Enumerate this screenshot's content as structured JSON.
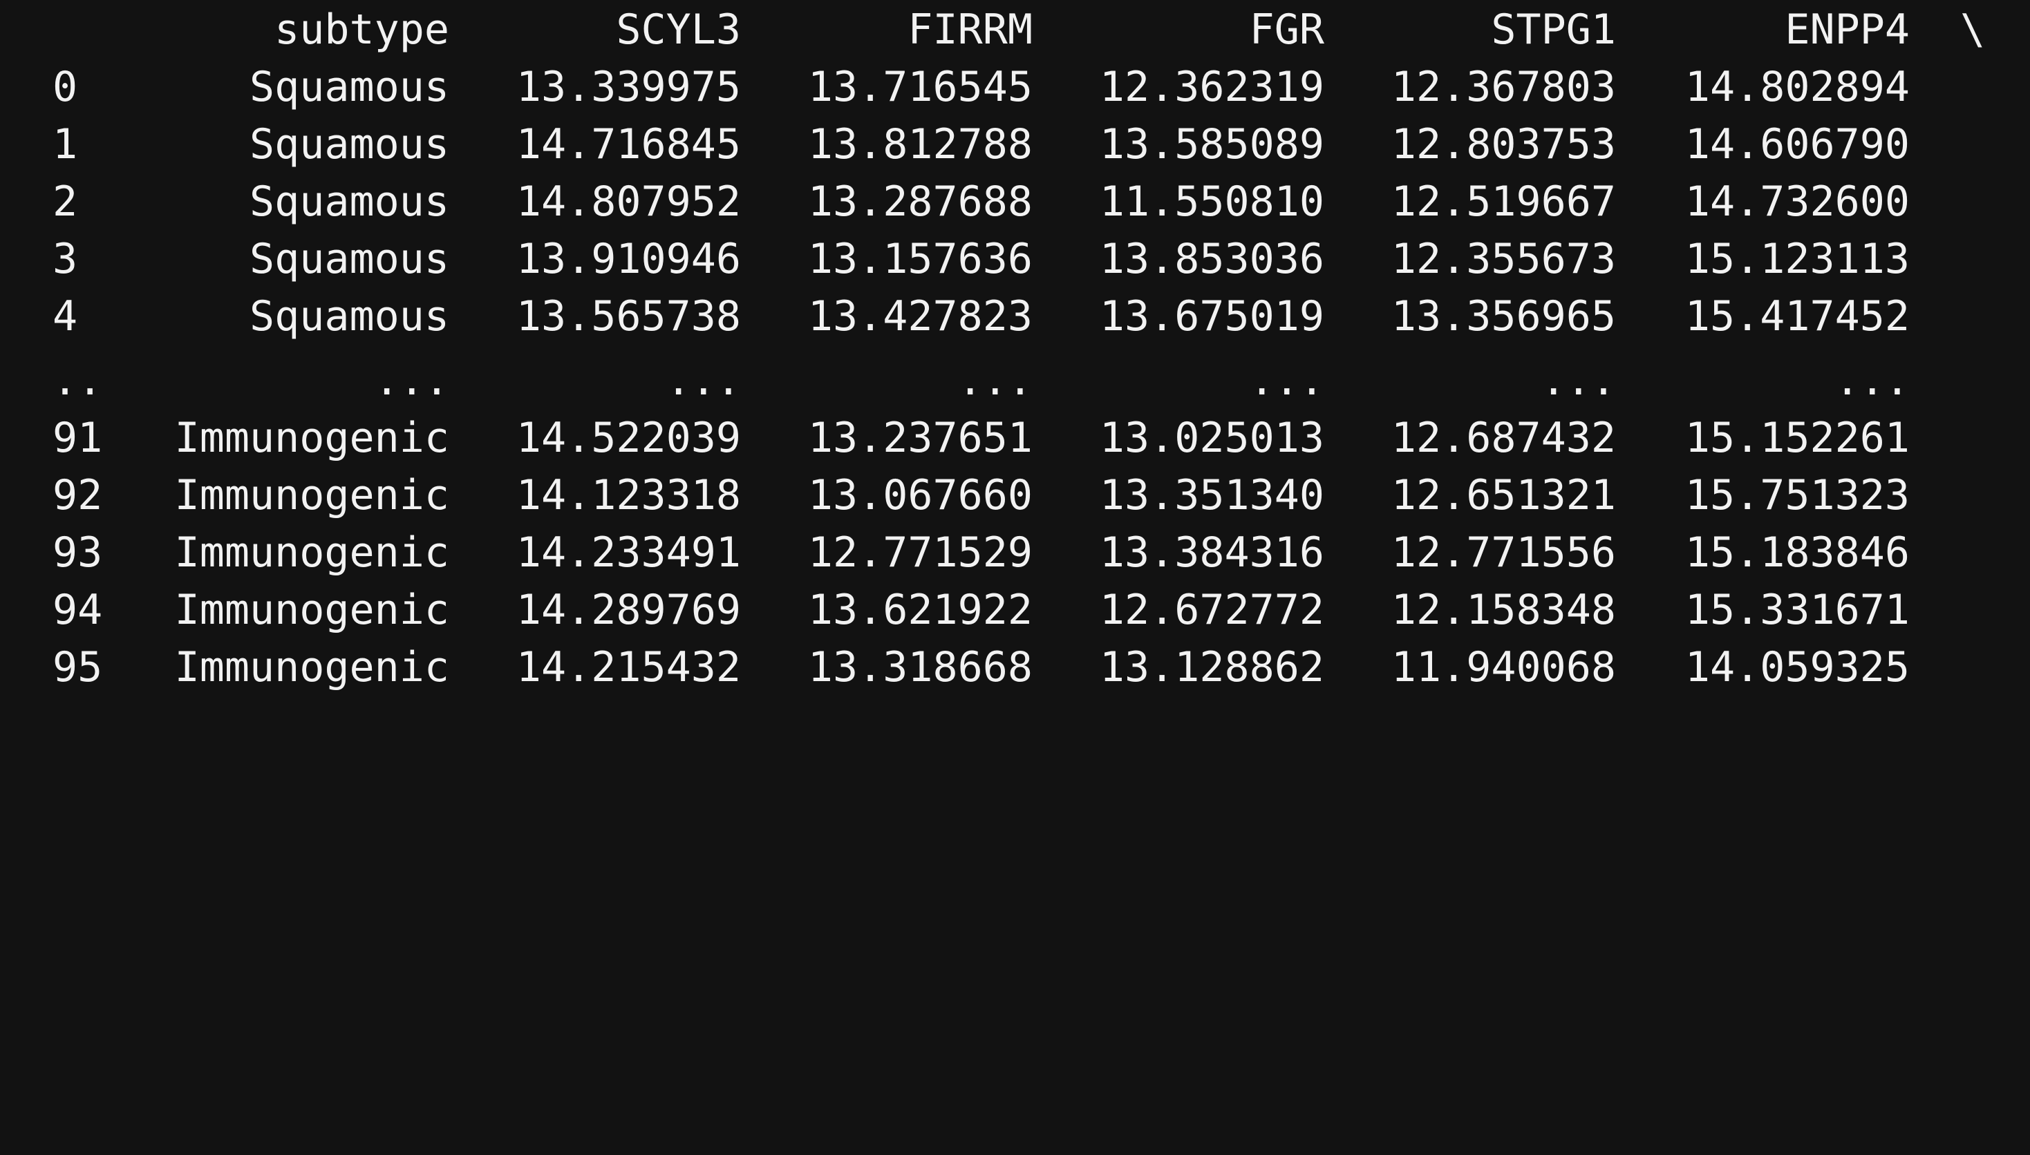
{
  "columns": [
    "",
    "subtype",
    "SCYL3",
    "FIRRM",
    "FGR",
    "STPG1",
    "ENPP4"
  ],
  "continuation": "\\",
  "rows": [
    [
      "0",
      "Squamous",
      "13.339975",
      "13.716545",
      "12.362319",
      "12.367803",
      "14.802894"
    ],
    [
      "1",
      "Squamous",
      "14.716845",
      "13.812788",
      "13.585089",
      "12.803753",
      "14.606790"
    ],
    [
      "2",
      "Squamous",
      "14.807952",
      "13.287688",
      "11.550810",
      "12.519667",
      "14.732600"
    ],
    [
      "3",
      "Squamous",
      "13.910946",
      "13.157636",
      "13.853036",
      "12.355673",
      "15.123113"
    ],
    [
      "4",
      "Squamous",
      "13.565738",
      "13.427823",
      "13.675019",
      "13.356965",
      "15.417452"
    ],
    [
      "..",
      "...",
      "...",
      "...",
      "...",
      "...",
      "..."
    ],
    [
      "91",
      "Immunogenic",
      "14.522039",
      "13.237651",
      "13.025013",
      "12.687432",
      "15.152261"
    ],
    [
      "92",
      "Immunogenic",
      "14.123318",
      "13.067660",
      "13.351340",
      "12.651321",
      "15.751323"
    ],
    [
      "93",
      "Immunogenic",
      "14.233491",
      "12.771529",
      "13.384316",
      "12.771556",
      "15.183846"
    ],
    [
      "94",
      "Immunogenic",
      "14.289769",
      "13.621922",
      "12.672772",
      "12.158348",
      "15.331671"
    ],
    [
      "95",
      "Immunogenic",
      "14.215432",
      "13.318668",
      "13.128862",
      "11.940068",
      "14.059325"
    ]
  ],
  "colors": {
    "background": "#121212",
    "text": "#f2f2f2"
  }
}
